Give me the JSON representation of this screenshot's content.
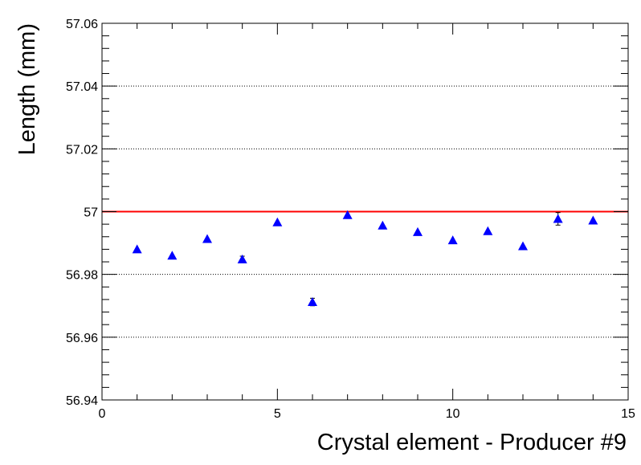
{
  "chart_data": {
    "type": "scatter",
    "xlabel": "Crystal element - Producer #9",
    "ylabel": "Length (mm)",
    "xlim": [
      0,
      15
    ],
    "ylim": [
      56.94,
      57.06
    ],
    "x_ticks": [
      0,
      5,
      10,
      15
    ],
    "x_tick_labels": [
      "0",
      "5",
      "10",
      "15"
    ],
    "y_ticks": [
      56.94,
      56.96,
      56.98,
      57.0,
      57.02,
      57.04,
      57.06
    ],
    "y_tick_labels": [
      "56.94",
      "56.96",
      "56.98",
      "57",
      "57.02",
      "57.04",
      "57.06"
    ],
    "grid": "horizontal dotted",
    "marker": "triangle-up",
    "marker_color": "#0000ff",
    "reference_line": {
      "y": 57.0,
      "color": "#ff0000"
    },
    "series": [
      {
        "x": [
          1,
          2,
          3,
          4,
          5,
          6,
          7,
          8,
          9,
          10,
          11,
          12,
          13,
          14
        ],
        "y": [
          56.988,
          56.986,
          56.9913,
          56.9848,
          56.9966,
          56.9712,
          56.9989,
          56.9956,
          56.9935,
          56.9909,
          56.9938,
          56.989,
          56.9977,
          56.9972
        ],
        "yerr": [
          0.0003,
          0.0003,
          0.0003,
          0.001,
          0.0003,
          0.0012,
          0.0003,
          0.0003,
          0.0003,
          0.0003,
          0.0003,
          0.0003,
          0.002,
          0.0003
        ]
      }
    ]
  }
}
